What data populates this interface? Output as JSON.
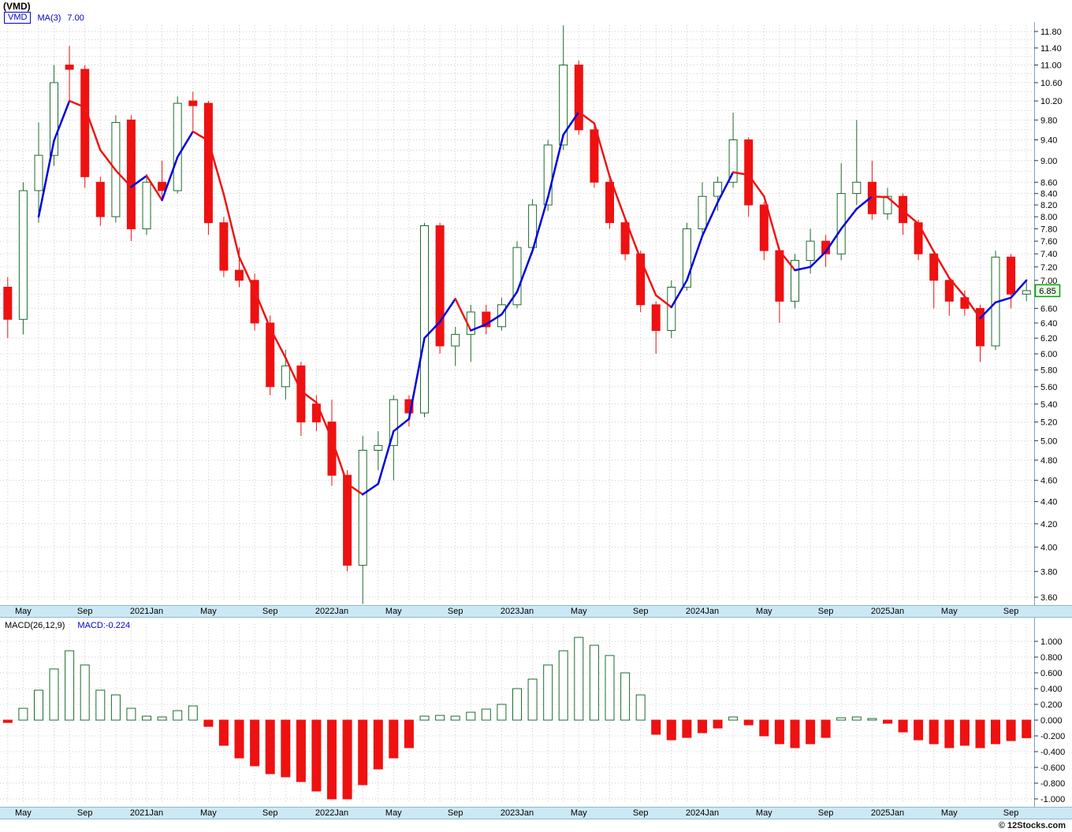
{
  "header": {
    "title": "(VMD)"
  },
  "legend": {
    "symbol": "VMD",
    "ma_label": "MA(3)",
    "ma_value": "7.00"
  },
  "price_badge": "6.85",
  "macd_header": {
    "title": "MACD(26,12,9)",
    "value_label": "MACD:-0.224"
  },
  "footer": {
    "copyright": "© 12Stocks.com"
  },
  "colors": {
    "up_outline": "#1e6b2e",
    "up_fill": "#ffffff",
    "down": "#ee1111",
    "ma_up": "#0000e0",
    "ma_down": "#f01414",
    "grid": "#cccccc",
    "axis_line": "#7aa0c4",
    "tick": "#333333",
    "strip_bg": "#cde8f5",
    "badge_border": "#00a000",
    "badge_bg": "#e8ffe8",
    "legend_blue": "#0000cc"
  },
  "chart_data": [
    {
      "type": "candlestick",
      "title": "(VMD)",
      "symbol": "VMD",
      "overlay": "MA(3)",
      "overlay_last_value": 7.0,
      "y_scale": "log",
      "ylim": [
        3.6,
        11.8
      ],
      "grid": true,
      "legend_position": "top-left",
      "last_price": 6.85,
      "y_tick_labels": [
        "11.80",
        "11.40",
        "11.00",
        "10.60",
        "10.20",
        "9.80",
        "9.40",
        "9.00",
        "8.60",
        "8.40",
        "8.20",
        "8.00",
        "7.80",
        "7.60",
        "7.40",
        "7.20",
        "7.00",
        "6.60",
        "6.40",
        "6.20",
        "6.00",
        "5.80",
        "5.60",
        "5.40",
        "5.20",
        "5.00",
        "4.80",
        "4.60",
        "4.40",
        "4.20",
        "4.00",
        "3.80",
        "3.60"
      ],
      "x_tick_labels": [
        {
          "i": 1,
          "label": "May"
        },
        {
          "i": 5,
          "label": "Sep"
        },
        {
          "i": 9,
          "label": "2021Jan"
        },
        {
          "i": 13,
          "label": "May"
        },
        {
          "i": 17,
          "label": "Sep"
        },
        {
          "i": 21,
          "label": "2022Jan"
        },
        {
          "i": 25,
          "label": "May"
        },
        {
          "i": 29,
          "label": "Sep"
        },
        {
          "i": 33,
          "label": "2023Jan"
        },
        {
          "i": 37,
          "label": "May"
        },
        {
          "i": 41,
          "label": "Sep"
        },
        {
          "i": 45,
          "label": "2024Jan"
        },
        {
          "i": 49,
          "label": "May"
        },
        {
          "i": 53,
          "label": "Sep"
        },
        {
          "i": 57,
          "label": "2025Jan"
        },
        {
          "i": 61,
          "label": "May"
        },
        {
          "i": 65,
          "label": "Sep"
        }
      ],
      "periods": [
        "2020-04",
        "2020-05",
        "2020-06",
        "2020-07",
        "2020-08",
        "2020-09",
        "2020-10",
        "2020-11",
        "2020-12",
        "2021-01",
        "2021-02",
        "2021-03",
        "2021-04",
        "2021-05",
        "2021-06",
        "2021-07",
        "2021-08",
        "2021-09",
        "2021-10",
        "2021-11",
        "2021-12",
        "2022-01",
        "2022-02",
        "2022-03",
        "2022-04",
        "2022-05",
        "2022-06",
        "2022-07",
        "2022-08",
        "2022-09",
        "2022-10",
        "2022-11",
        "2022-12",
        "2023-01",
        "2023-02",
        "2023-03",
        "2023-04",
        "2023-05",
        "2023-06",
        "2023-07",
        "2023-08",
        "2023-09",
        "2023-10",
        "2023-11",
        "2023-12",
        "2024-01",
        "2024-02",
        "2024-03",
        "2024-04",
        "2024-05",
        "2024-06",
        "2024-07",
        "2024-08",
        "2024-09",
        "2024-10",
        "2024-11",
        "2024-12",
        "2025-01",
        "2025-02",
        "2025-03",
        "2025-04",
        "2025-05",
        "2025-06",
        "2025-07",
        "2025-08",
        "2025-09",
        "2025-10"
      ],
      "ohlc": [
        [
          6.9,
          7.05,
          6.2,
          6.45
        ],
        [
          6.45,
          8.6,
          6.25,
          8.45
        ],
        [
          8.45,
          9.75,
          7.9,
          9.1
        ],
        [
          9.1,
          11.0,
          8.9,
          10.6
        ],
        [
          11.0,
          11.45,
          10.2,
          10.9
        ],
        [
          10.9,
          11.0,
          8.5,
          8.7
        ],
        [
          8.6,
          8.7,
          7.85,
          8.0
        ],
        [
          8.0,
          9.9,
          7.9,
          9.75
        ],
        [
          9.8,
          9.9,
          7.6,
          7.8
        ],
        [
          7.8,
          8.75,
          7.7,
          8.6
        ],
        [
          8.6,
          9.0,
          8.3,
          8.45
        ],
        [
          8.45,
          10.3,
          8.4,
          10.15
        ],
        [
          10.2,
          10.4,
          9.6,
          10.1
        ],
        [
          10.15,
          10.2,
          7.7,
          7.9
        ],
        [
          7.9,
          8.0,
          7.05,
          7.15
        ],
        [
          7.15,
          7.5,
          6.9,
          7.0
        ],
        [
          7.0,
          7.1,
          6.3,
          6.4
        ],
        [
          6.4,
          6.5,
          5.5,
          5.6
        ],
        [
          5.6,
          6.05,
          5.45,
          5.85
        ],
        [
          5.85,
          5.9,
          5.05,
          5.2
        ],
        [
          5.4,
          5.5,
          5.1,
          5.2
        ],
        [
          5.2,
          5.45,
          4.55,
          4.65
        ],
        [
          4.65,
          4.7,
          3.8,
          3.85
        ],
        [
          3.85,
          5.05,
          3.55,
          4.9
        ],
        [
          4.9,
          5.1,
          4.7,
          4.95
        ],
        [
          4.95,
          5.5,
          4.6,
          5.45
        ],
        [
          5.45,
          5.5,
          5.15,
          5.3
        ],
        [
          5.3,
          7.9,
          5.25,
          7.85
        ],
        [
          7.85,
          7.9,
          6.0,
          6.1
        ],
        [
          6.1,
          6.35,
          5.85,
          6.25
        ],
        [
          6.25,
          6.65,
          5.9,
          6.55
        ],
        [
          6.55,
          6.65,
          6.25,
          6.35
        ],
        [
          6.35,
          6.75,
          6.3,
          6.65
        ],
        [
          6.65,
          7.6,
          6.6,
          7.5
        ],
        [
          7.5,
          8.3,
          7.4,
          8.2
        ],
        [
          8.2,
          9.4,
          8.1,
          9.3
        ],
        [
          9.3,
          11.95,
          9.2,
          11.0
        ],
        [
          11.0,
          11.1,
          9.5,
          9.6
        ],
        [
          9.6,
          9.7,
          8.5,
          8.6
        ],
        [
          8.6,
          8.65,
          7.8,
          7.9
        ],
        [
          7.9,
          8.0,
          7.3,
          7.4
        ],
        [
          7.4,
          7.45,
          6.55,
          6.65
        ],
        [
          6.65,
          6.7,
          6.0,
          6.3
        ],
        [
          6.3,
          7.0,
          6.2,
          6.9
        ],
        [
          6.9,
          7.9,
          6.85,
          7.8
        ],
        [
          7.8,
          8.6,
          7.7,
          8.35
        ],
        [
          8.35,
          8.7,
          8.1,
          8.6
        ],
        [
          8.6,
          9.95,
          8.5,
          9.4
        ],
        [
          9.4,
          9.45,
          8.0,
          8.2
        ],
        [
          8.2,
          8.25,
          7.3,
          7.45
        ],
        [
          7.45,
          7.5,
          6.4,
          6.7
        ],
        [
          6.7,
          7.4,
          6.6,
          7.3
        ],
        [
          7.3,
          7.8,
          7.1,
          7.6
        ],
        [
          7.6,
          7.7,
          7.2,
          7.4
        ],
        [
          7.4,
          8.95,
          7.3,
          8.4
        ],
        [
          8.4,
          9.8,
          8.2,
          8.6
        ],
        [
          8.6,
          9.0,
          7.95,
          8.05
        ],
        [
          8.05,
          8.5,
          7.95,
          8.35
        ],
        [
          8.35,
          8.4,
          7.7,
          7.9
        ],
        [
          7.9,
          7.95,
          7.3,
          7.4
        ],
        [
          7.4,
          7.45,
          6.6,
          7.0
        ],
        [
          7.0,
          7.05,
          6.5,
          6.7
        ],
        [
          6.75,
          6.85,
          6.5,
          6.6
        ],
        [
          6.6,
          6.65,
          5.9,
          6.1
        ],
        [
          6.1,
          7.45,
          6.05,
          7.35
        ],
        [
          7.35,
          7.4,
          6.6,
          6.8
        ],
        [
          6.8,
          7.0,
          6.7,
          6.85
        ]
      ]
    },
    {
      "type": "bar",
      "title": "MACD(26,12,9)",
      "last_value": -0.224,
      "ylim": [
        -1.1,
        1.1
      ],
      "grid": true,
      "y_tick_labels": [
        "1.000",
        "0.800",
        "0.600",
        "0.400",
        "0.200",
        "0.000",
        "-0.200",
        "-0.400",
        "-0.600",
        "-0.800",
        "-1.000"
      ],
      "values": [
        -0.03,
        0.15,
        0.38,
        0.65,
        0.88,
        0.7,
        0.38,
        0.32,
        0.15,
        0.05,
        0.04,
        0.12,
        0.18,
        -0.08,
        -0.32,
        -0.48,
        -0.58,
        -0.68,
        -0.72,
        -0.78,
        -0.9,
        -1.0,
        -1.0,
        -0.82,
        -0.62,
        -0.48,
        -0.35,
        0.05,
        0.06,
        0.05,
        0.1,
        0.14,
        0.2,
        0.4,
        0.52,
        0.7,
        0.88,
        1.05,
        0.95,
        0.82,
        0.6,
        0.32,
        -0.18,
        -0.25,
        -0.22,
        -0.16,
        -0.1,
        0.04,
        -0.06,
        -0.2,
        -0.3,
        -0.35,
        -0.3,
        -0.22,
        0.03,
        0.04,
        0.02,
        -0.04,
        -0.15,
        -0.25,
        -0.3,
        -0.35,
        -0.32,
        -0.35,
        -0.3,
        -0.26,
        -0.224
      ]
    }
  ]
}
